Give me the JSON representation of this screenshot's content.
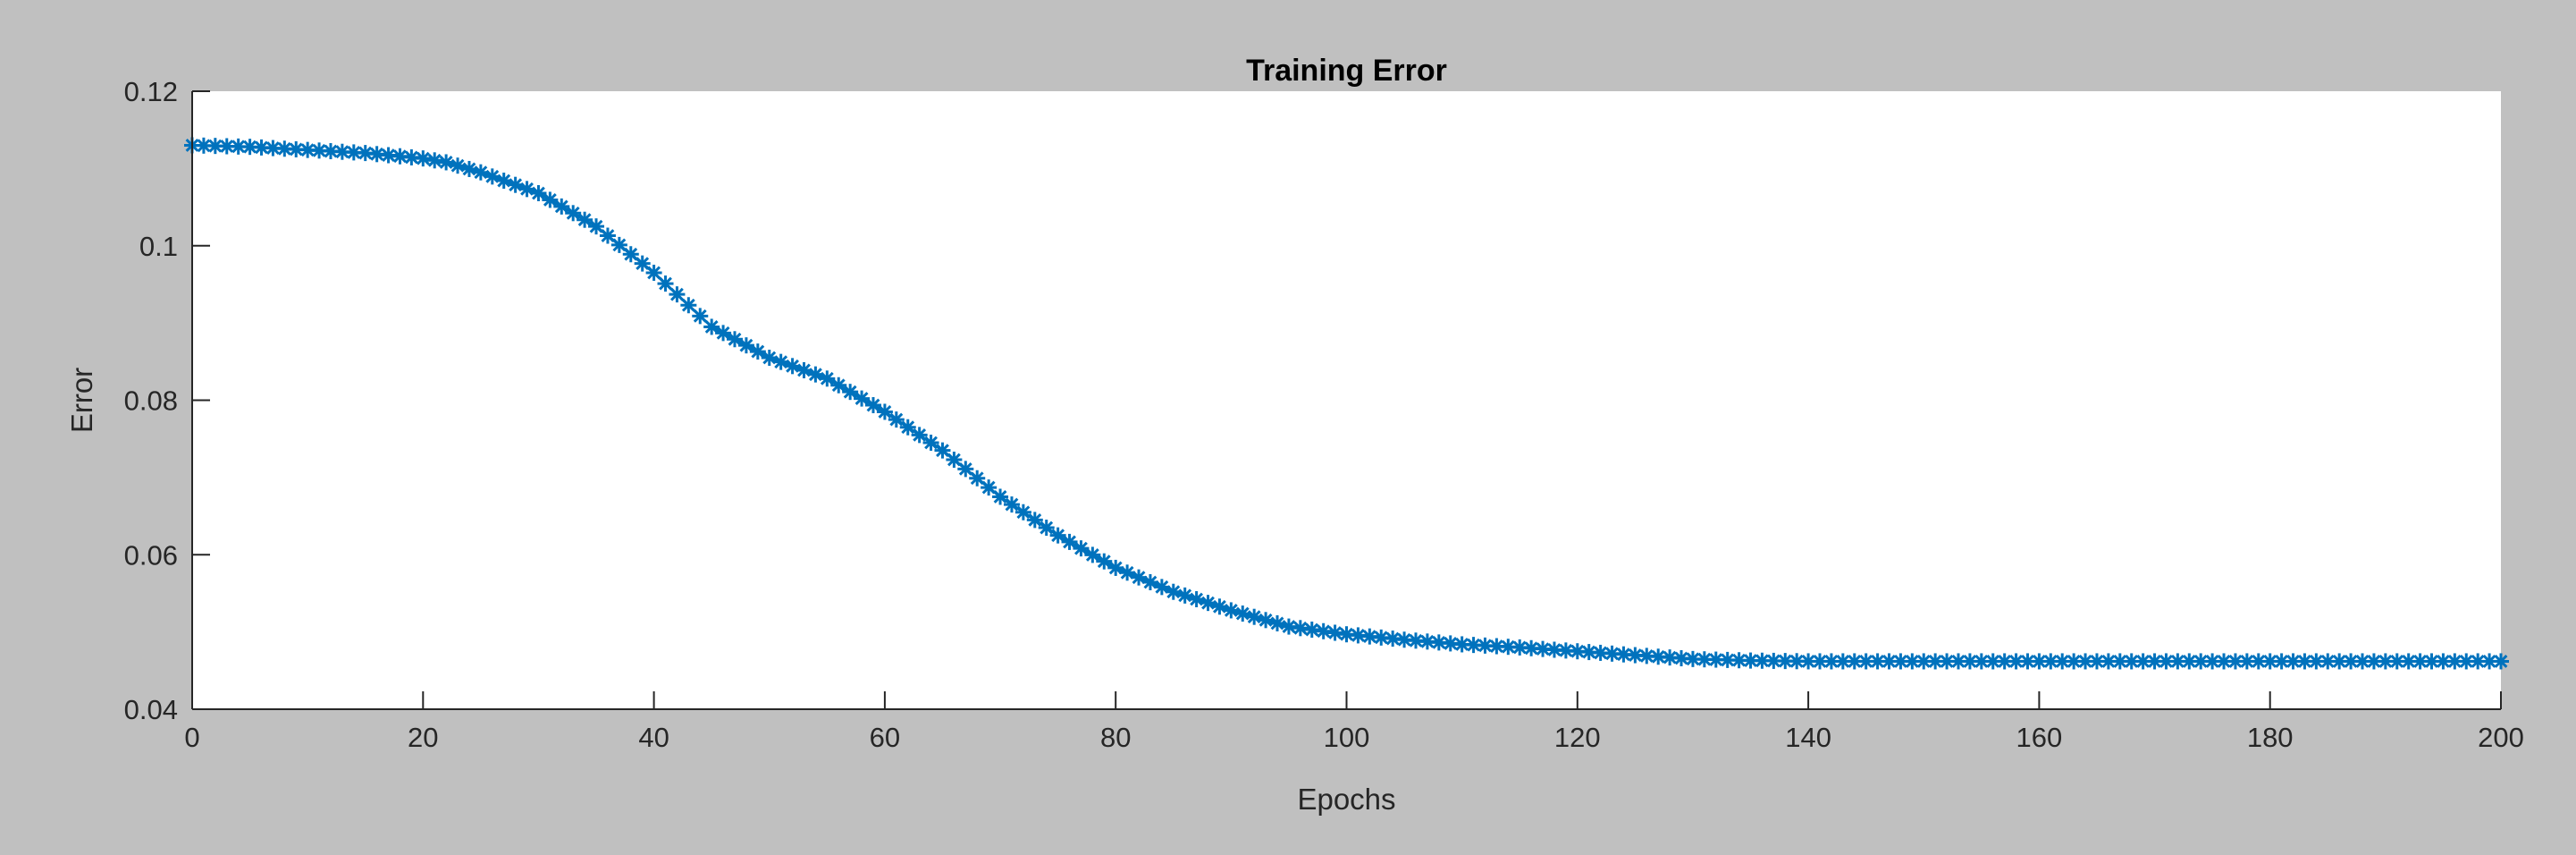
{
  "figure": {
    "background_color": "#c0c0c0",
    "axes_color": "#ffffff",
    "axis_line_color": "#262626",
    "series_color": "#0072bd"
  },
  "chart_data": {
    "type": "line",
    "title": "Training Error",
    "xlabel": "Epochs",
    "ylabel": "Error",
    "xlim": [
      0,
      200
    ],
    "ylim": [
      0.04,
      0.12
    ],
    "xticks": [
      0,
      20,
      40,
      60,
      80,
      100,
      120,
      140,
      160,
      180,
      200
    ],
    "xtick_labels": [
      "0",
      "20",
      "40",
      "60",
      "80",
      "100",
      "120",
      "140",
      "160",
      "180",
      "200"
    ],
    "yticks": [
      0.04,
      0.06,
      0.08,
      0.1,
      0.12
    ],
    "ytick_labels": [
      "0.04",
      "0.06",
      "0.08",
      "0.1",
      "0.12"
    ],
    "grid": false,
    "marker": "asterisk",
    "series": [
      {
        "x": [
          0,
          5,
          10,
          15,
          20,
          22,
          25,
          30,
          35,
          40,
          45,
          50,
          55,
          60,
          65,
          70,
          75,
          80,
          85,
          90,
          95,
          100,
          105,
          110,
          115,
          120,
          125,
          130,
          135,
          140,
          150,
          160,
          170,
          180,
          190,
          200
        ],
        "y": [
          0.113,
          0.1128,
          0.1124,
          0.112,
          0.1113,
          0.1108,
          0.1095,
          0.1068,
          0.1025,
          0.0965,
          0.0895,
          0.0855,
          0.0828,
          0.0785,
          0.0735,
          0.0675,
          0.0625,
          0.0583,
          0.0552,
          0.0528,
          0.0507,
          0.0497,
          0.049,
          0.0484,
          0.048,
          0.0475,
          0.047,
          0.0465,
          0.0463,
          0.0462,
          0.0462,
          0.0462,
          0.0462,
          0.0462,
          0.0462,
          0.0462
        ]
      }
    ]
  }
}
